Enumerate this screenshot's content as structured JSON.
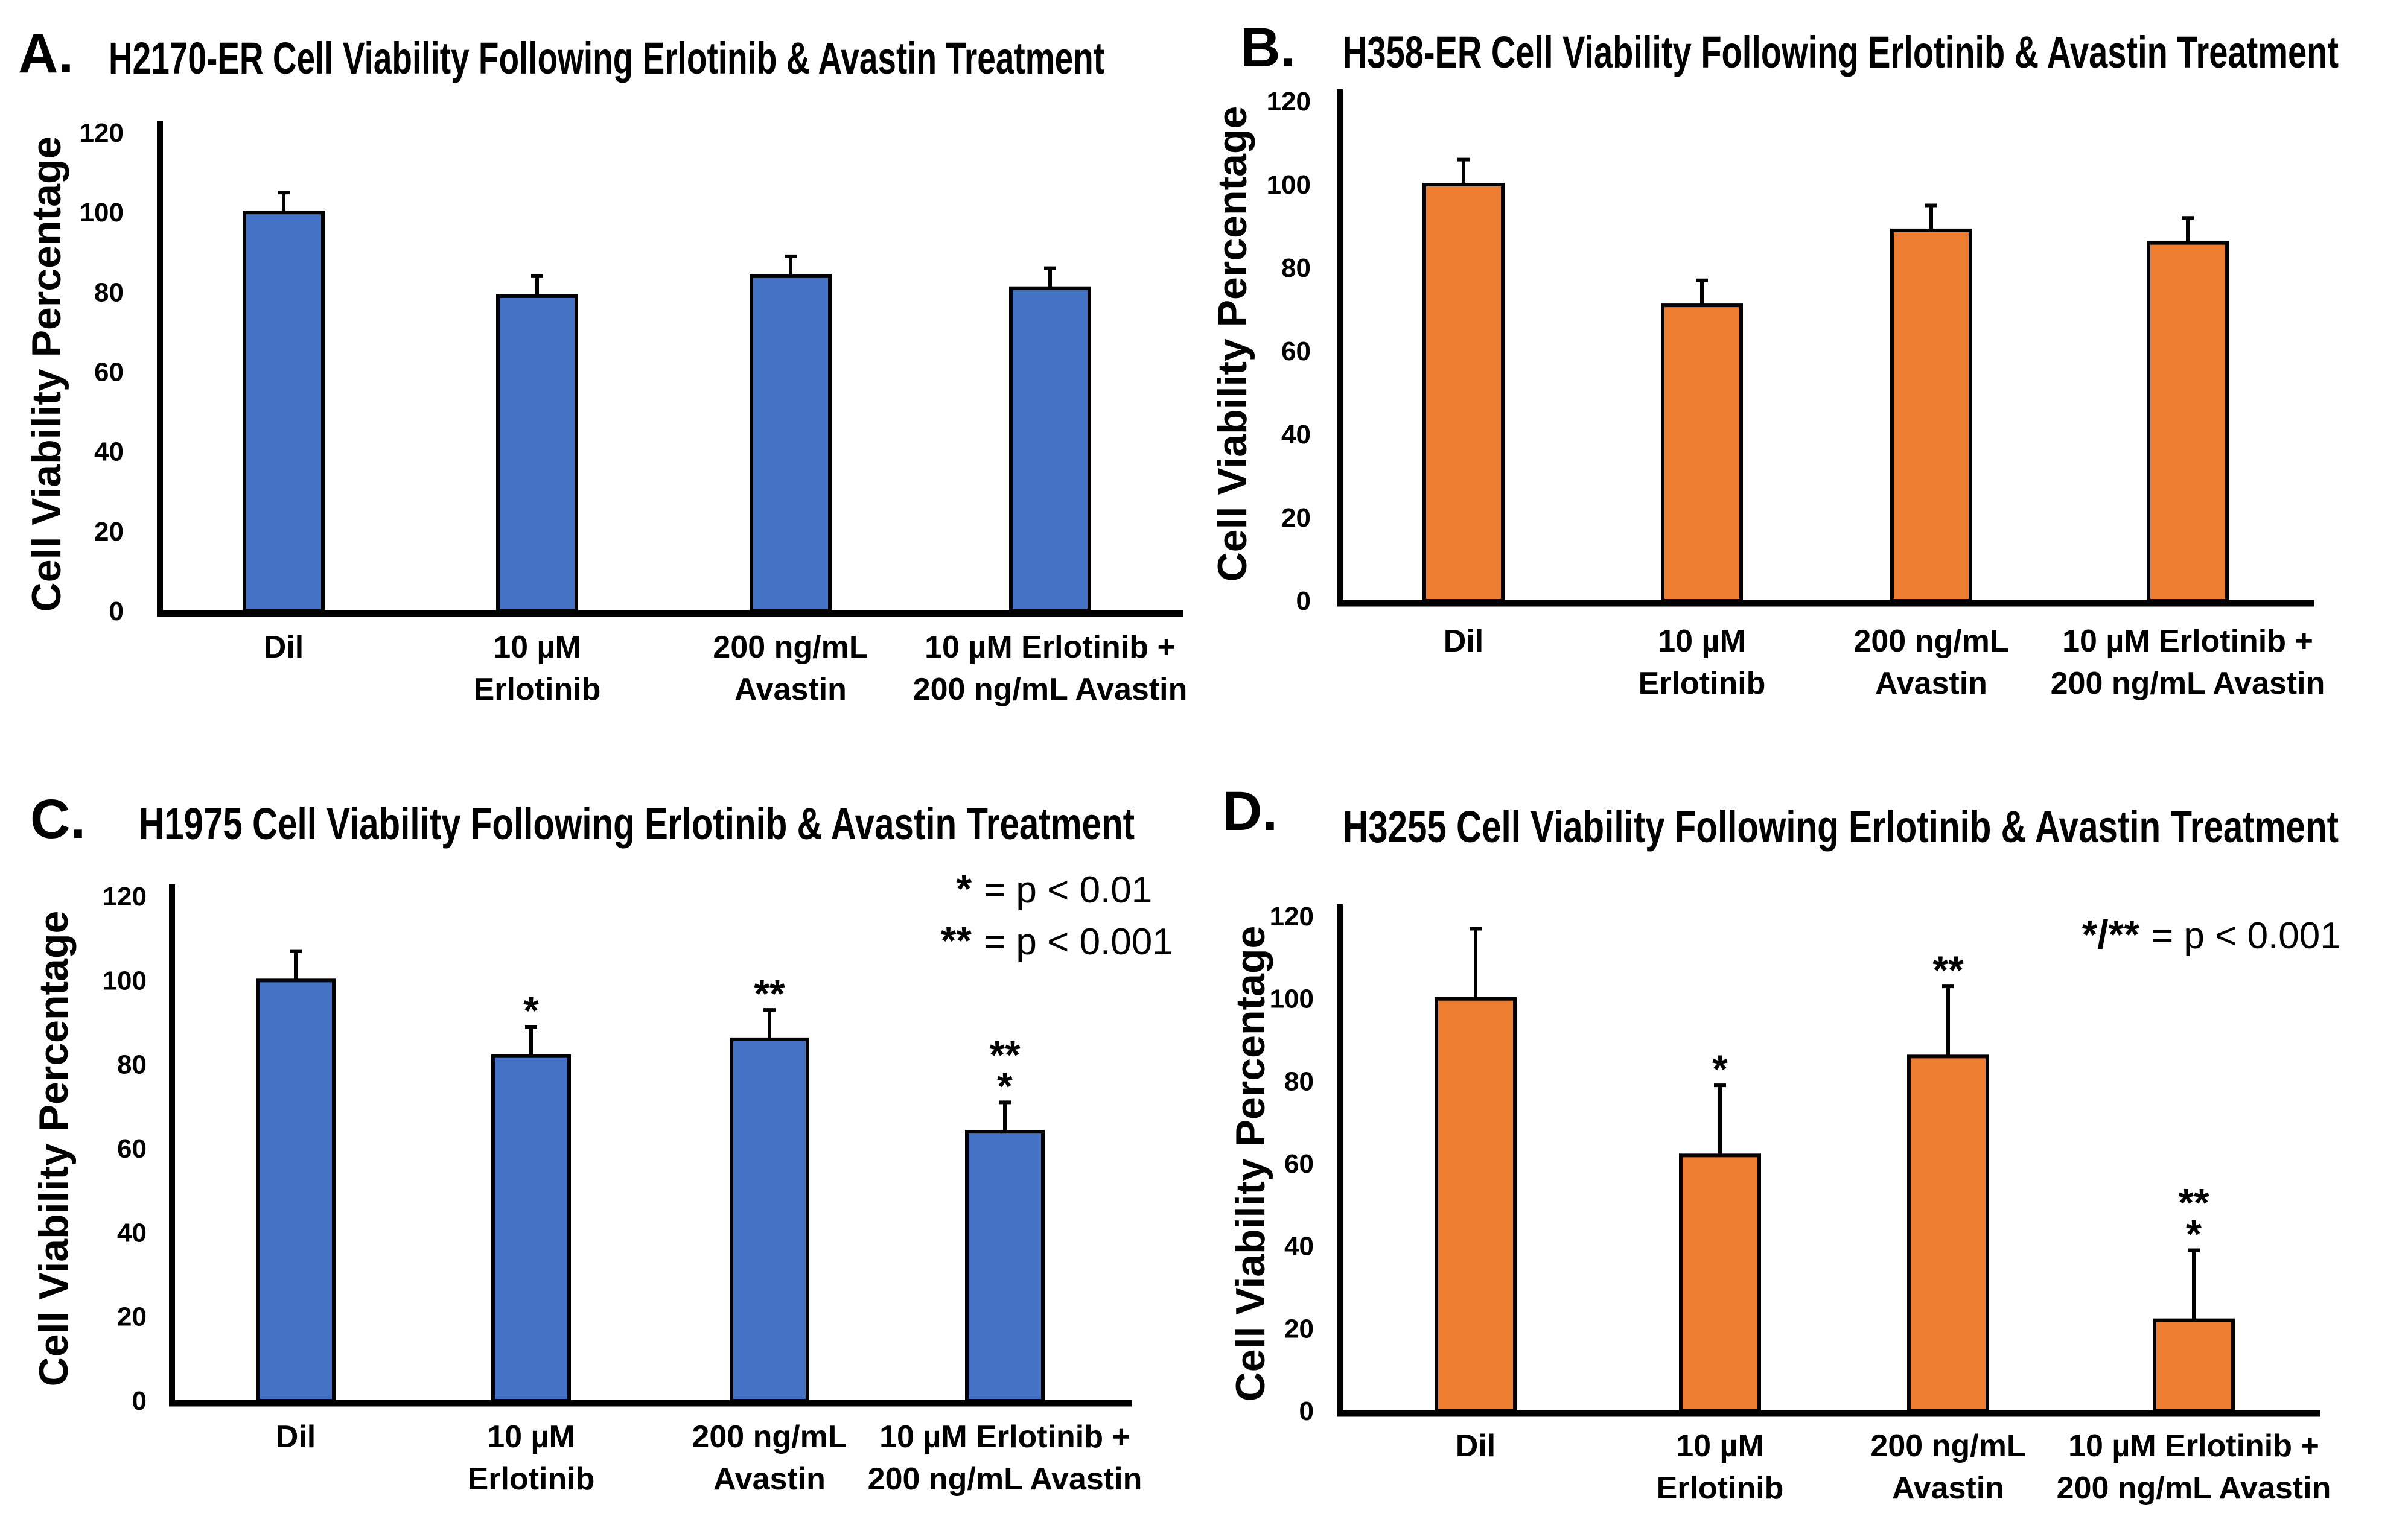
{
  "figure": {
    "type": "multi-panel bar chart"
  },
  "chart_data": [
    {
      "panel": "A.",
      "type": "bar",
      "title": "H2170-ER Cell Viability Following Erlotinib & Avastin Treatment",
      "ylabel": "Cell Viability Percentage",
      "xlabel": "",
      "ylim": [
        0,
        120
      ],
      "yticks": [
        "0",
        "20",
        "40",
        "60",
        "80",
        "100",
        "120"
      ],
      "categories": [
        [
          "Dil"
        ],
        [
          "10 µM",
          "Erlotinib"
        ],
        [
          "200 ng/mL",
          "Avastin"
        ],
        [
          "10 µM Erlotinib +",
          "200 ng/mL Avastin"
        ]
      ],
      "values": [
        100,
        79,
        84,
        81
      ],
      "errors": [
        5,
        5,
        5,
        5
      ],
      "significance": [
        [],
        [],
        [],
        []
      ],
      "legend": [],
      "color": "#4472c4"
    },
    {
      "panel": "B.",
      "type": "bar",
      "title": "H358-ER Cell Viability Following Erlotinib & Avastin Treatment",
      "ylabel": "Cell Viability Percentage",
      "xlabel": "",
      "ylim": [
        0,
        120
      ],
      "yticks": [
        "0",
        "20",
        "40",
        "60",
        "80",
        "100",
        "120"
      ],
      "categories": [
        [
          "Dil"
        ],
        [
          "10 µM",
          "Erlotinib"
        ],
        [
          "200 ng/mL",
          "Avastin"
        ],
        [
          "10 µM Erlotinib +",
          "200 ng/mL Avastin"
        ]
      ],
      "values": [
        100,
        71,
        89,
        86
      ],
      "errors": [
        6,
        6,
        6,
        6
      ],
      "significance": [
        [],
        [],
        [],
        []
      ],
      "legend": [],
      "color": "#ed7d31"
    },
    {
      "panel": "C.",
      "type": "bar",
      "title": "H1975 Cell Viability Following Erlotinib & Avastin Treatment",
      "ylabel": "Cell Viability Percentage",
      "xlabel": "",
      "ylim": [
        0,
        120
      ],
      "yticks": [
        "0",
        "20",
        "40",
        "60",
        "80",
        "100",
        "120"
      ],
      "categories": [
        [
          "Dil"
        ],
        [
          "10 µM",
          "Erlotinib"
        ],
        [
          "200 ng/mL",
          "Avastin"
        ],
        [
          "10 µM Erlotinib +",
          "200 ng/mL Avastin"
        ]
      ],
      "values": [
        100,
        82,
        86,
        64
      ],
      "errors": [
        7,
        7,
        7,
        7
      ],
      "significance": [
        [],
        [
          "*"
        ],
        [
          "**"
        ],
        [
          "**",
          "*"
        ]
      ],
      "legend": [
        {
          "symbol": "*",
          "text": "= p < 0.01"
        },
        {
          "symbol": "**",
          "text": "= p < 0.001"
        }
      ],
      "color": "#4472c4"
    },
    {
      "panel": "D.",
      "type": "bar",
      "title": "H3255 Cell Viability Following Erlotinib & Avastin Treatment",
      "ylabel": "Cell Viability Percentage",
      "xlabel": "",
      "ylim": [
        0,
        120
      ],
      "yticks": [
        "0",
        "20",
        "40",
        "60",
        "80",
        "100",
        "120"
      ],
      "categories": [
        [
          "Dil"
        ],
        [
          "10 µM",
          "Erlotinib"
        ],
        [
          "200 ng/mL",
          "Avastin"
        ],
        [
          "10 µM Erlotinib +",
          "200 ng/mL Avastin"
        ]
      ],
      "values": [
        100,
        62,
        86,
        22
      ],
      "errors": [
        17,
        17,
        17,
        17
      ],
      "significance": [
        [],
        [
          "*"
        ],
        [
          "**"
        ],
        [
          "**",
          "*"
        ]
      ],
      "legend": [
        {
          "symbol": "*/**",
          "text": "= p < 0.001"
        }
      ],
      "color": "#ed7d31"
    }
  ]
}
